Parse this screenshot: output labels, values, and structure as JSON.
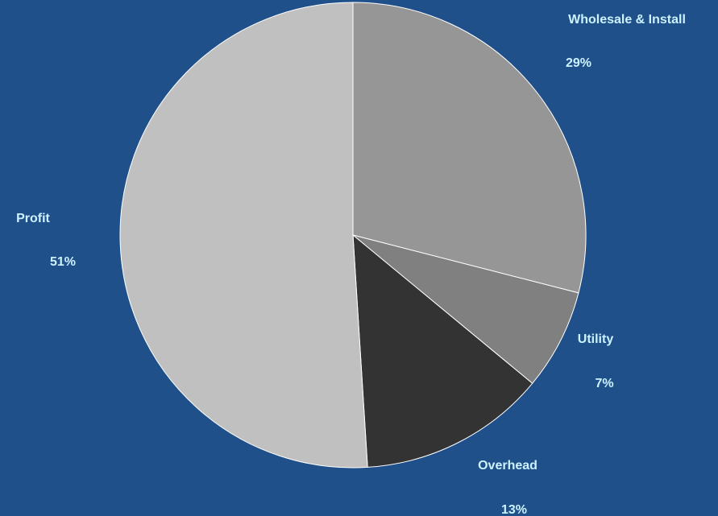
{
  "chart_data": {
    "type": "pie",
    "title": "",
    "slices": [
      {
        "label": "Wholesale & Install",
        "value": 29,
        "value_label": "29%",
        "color": "#969696"
      },
      {
        "label": "Utility",
        "value": 7,
        "value_label": "7%",
        "color": "#808080"
      },
      {
        "label": "Overhead",
        "value": 13,
        "value_label": "13%",
        "color": "#333333"
      },
      {
        "label": "Profit",
        "value": 51,
        "value_label": "51%",
        "color": "#c0c0c0"
      }
    ],
    "background_color": "#1f5089",
    "label_color": "#ccf2ff",
    "slice_border_color": "#ffffff",
    "legend": "none"
  }
}
